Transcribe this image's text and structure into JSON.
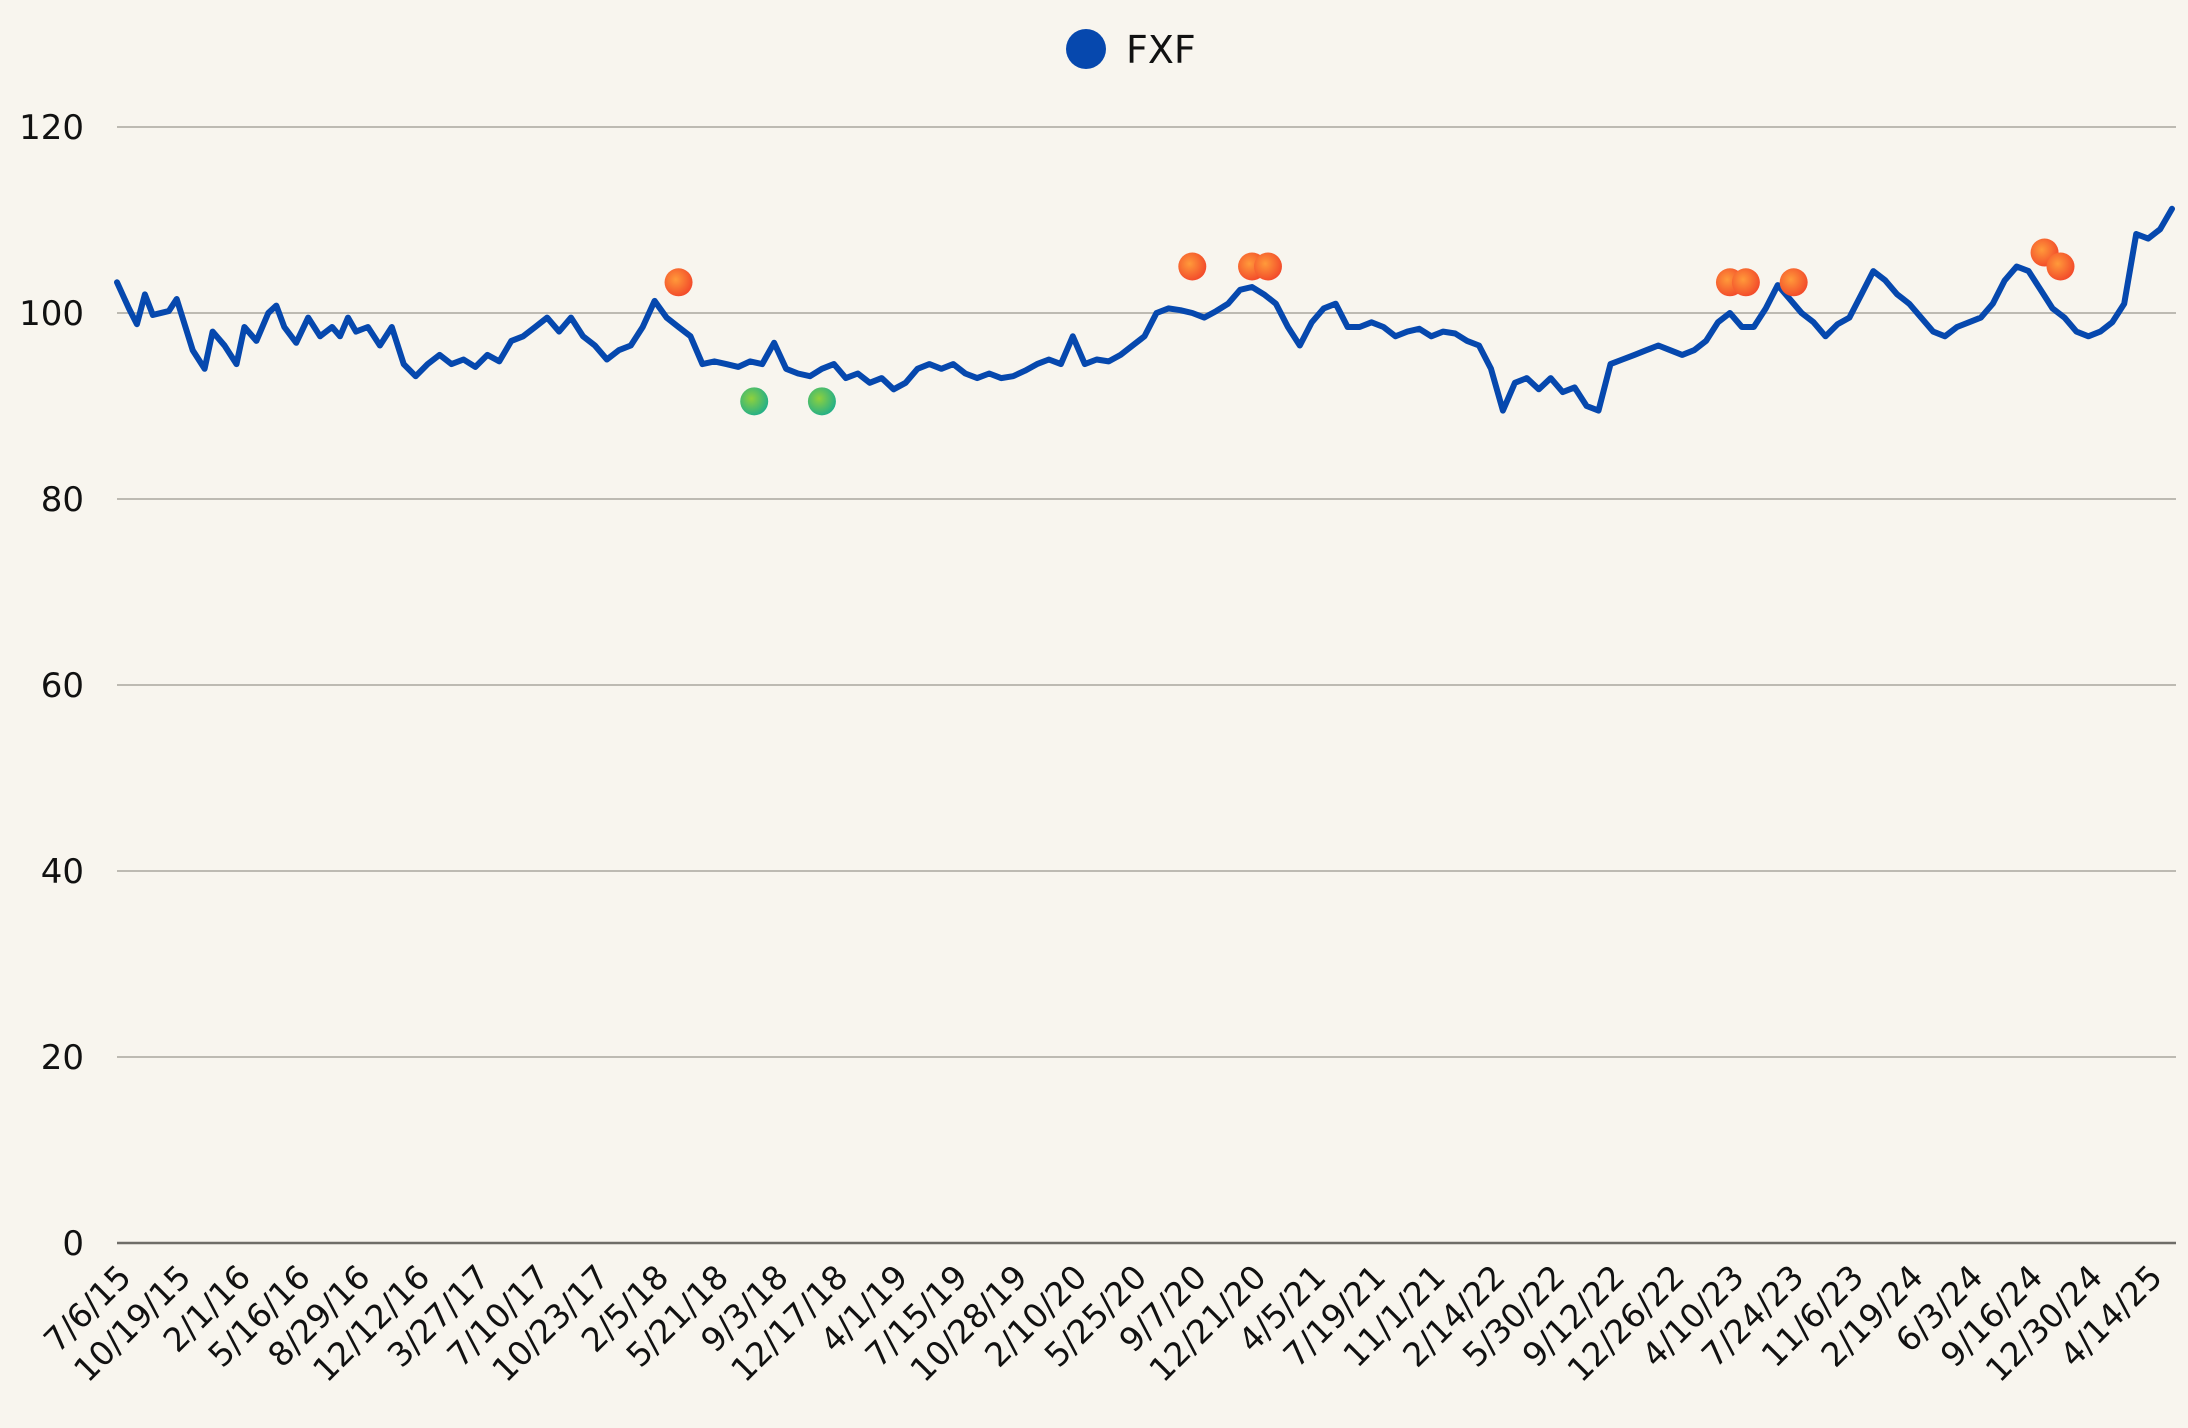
{
  "chart_data": {
    "type": "line",
    "legend": {
      "placement": "top-center"
    },
    "series": [
      {
        "name": "FXF",
        "color": "#0648ae",
        "points": [
          [
            "7/6/15",
            103.3
          ],
          [
            "7/27/15",
            100.5
          ],
          [
            "8/10/15",
            98.8
          ],
          [
            "8/24/15",
            102.0
          ],
          [
            "9/7/15",
            99.8
          ],
          [
            "10/5/15",
            100.2
          ],
          [
            "10/19/15",
            101.5
          ],
          [
            "11/16/15",
            96.0
          ],
          [
            "12/7/15",
            94.0
          ],
          [
            "12/21/15",
            98.0
          ],
          [
            "1/11/16",
            96.5
          ],
          [
            "2/1/16",
            94.5
          ],
          [
            "2/15/16",
            98.5
          ],
          [
            "3/7/16",
            97.0
          ],
          [
            "3/28/16",
            100.0
          ],
          [
            "4/11/16",
            100.8
          ],
          [
            "4/25/16",
            98.5
          ],
          [
            "5/16/16",
            96.8
          ],
          [
            "6/6/16",
            99.5
          ],
          [
            "6/27/16",
            97.5
          ],
          [
            "7/18/16",
            98.5
          ],
          [
            "8/1/16",
            97.5
          ],
          [
            "8/15/16",
            99.5
          ],
          [
            "8/29/16",
            98.0
          ],
          [
            "9/19/16",
            98.5
          ],
          [
            "10/10/16",
            96.5
          ],
          [
            "10/31/16",
            98.5
          ],
          [
            "11/21/16",
            94.5
          ],
          [
            "12/12/16",
            93.2
          ],
          [
            "1/2/17",
            94.5
          ],
          [
            "1/23/17",
            95.5
          ],
          [
            "2/13/17",
            94.5
          ],
          [
            "3/6/17",
            95.0
          ],
          [
            "3/27/17",
            94.2
          ],
          [
            "4/17/17",
            95.5
          ],
          [
            "5/8/17",
            94.8
          ],
          [
            "5/29/17",
            97.0
          ],
          [
            "6/19/17",
            97.5
          ],
          [
            "7/10/17",
            98.5
          ],
          [
            "7/31/17",
            99.5
          ],
          [
            "8/21/17",
            98.0
          ],
          [
            "9/11/17",
            99.5
          ],
          [
            "10/2/17",
            97.5
          ],
          [
            "10/23/17",
            96.5
          ],
          [
            "11/13/17",
            95.0
          ],
          [
            "12/4/17",
            96.0
          ],
          [
            "12/25/17",
            96.5
          ],
          [
            "1/15/18",
            98.5
          ],
          [
            "2/5/18",
            101.3
          ],
          [
            "2/26/18",
            99.5
          ],
          [
            "3/19/18",
            98.5
          ],
          [
            "4/9/18",
            97.5
          ],
          [
            "4/30/18",
            94.5
          ],
          [
            "5/21/18",
            94.8
          ],
          [
            "6/11/18",
            94.5
          ],
          [
            "7/2/18",
            94.2
          ],
          [
            "7/23/18",
            94.8
          ],
          [
            "8/13/18",
            94.5
          ],
          [
            "9/3/18",
            96.8
          ],
          [
            "9/24/18",
            94.0
          ],
          [
            "10/15/18",
            93.5
          ],
          [
            "11/5/18",
            93.2
          ],
          [
            "11/26/18",
            94.0
          ],
          [
            "12/17/18",
            94.5
          ],
          [
            "1/7/19",
            93.0
          ],
          [
            "1/28/19",
            93.5
          ],
          [
            "2/18/19",
            92.5
          ],
          [
            "3/11/19",
            93.0
          ],
          [
            "4/1/19",
            91.8
          ],
          [
            "4/22/19",
            92.5
          ],
          [
            "5/13/19",
            94.0
          ],
          [
            "6/3/19",
            94.5
          ],
          [
            "6/24/19",
            94.0
          ],
          [
            "7/15/19",
            94.5
          ],
          [
            "8/5/19",
            93.5
          ],
          [
            "8/26/19",
            93.0
          ],
          [
            "9/16/19",
            93.5
          ],
          [
            "10/7/19",
            93.0
          ],
          [
            "10/28/19",
            93.2
          ],
          [
            "11/18/19",
            93.8
          ],
          [
            "12/9/19",
            94.5
          ],
          [
            "12/30/19",
            95.0
          ],
          [
            "1/20/20",
            94.5
          ],
          [
            "2/10/20",
            97.5
          ],
          [
            "3/2/20",
            94.5
          ],
          [
            "3/23/20",
            95.0
          ],
          [
            "4/13/20",
            94.8
          ],
          [
            "5/4/20",
            95.5
          ],
          [
            "5/25/20",
            96.5
          ],
          [
            "6/15/20",
            97.5
          ],
          [
            "7/6/20",
            100.0
          ],
          [
            "7/27/20",
            100.5
          ],
          [
            "8/17/20",
            100.3
          ],
          [
            "9/7/20",
            100.0
          ],
          [
            "9/28/20",
            99.5
          ],
          [
            "10/19/20",
            100.2
          ],
          [
            "11/9/20",
            101.0
          ],
          [
            "11/30/20",
            102.5
          ],
          [
            "12/21/20",
            102.8
          ],
          [
            "1/11/21",
            102.0
          ],
          [
            "2/1/21",
            101.0
          ],
          [
            "2/22/21",
            98.5
          ],
          [
            "3/15/21",
            96.5
          ],
          [
            "4/5/21",
            99.0
          ],
          [
            "4/26/21",
            100.5
          ],
          [
            "5/17/21",
            101.0
          ],
          [
            "6/7/21",
            98.5
          ],
          [
            "6/28/21",
            98.5
          ],
          [
            "7/19/21",
            99.0
          ],
          [
            "8/9/21",
            98.5
          ],
          [
            "8/30/21",
            97.5
          ],
          [
            "9/20/21",
            98.0
          ],
          [
            "10/11/21",
            98.3
          ],
          [
            "11/1/21",
            97.5
          ],
          [
            "11/22/21",
            98.0
          ],
          [
            "12/13/21",
            97.8
          ],
          [
            "1/3/22",
            97.0
          ],
          [
            "1/24/22",
            96.5
          ],
          [
            "2/14/22",
            94.0
          ],
          [
            "3/7/22",
            89.5
          ],
          [
            "3/28/22",
            92.5
          ],
          [
            "4/18/22",
            93.0
          ],
          [
            "5/9/22",
            91.8
          ],
          [
            "5/30/22",
            93.0
          ],
          [
            "6/20/22",
            91.5
          ],
          [
            "7/11/22",
            92.0
          ],
          [
            "8/1/22",
            90.0
          ],
          [
            "8/22/22",
            89.5
          ],
          [
            "9/12/22",
            94.5
          ],
          [
            "10/3/22",
            95.0
          ],
          [
            "10/24/22",
            95.5
          ],
          [
            "11/14/22",
            96.0
          ],
          [
            "12/5/22",
            96.5
          ],
          [
            "12/26/22",
            96.0
          ],
          [
            "1/16/23",
            95.5
          ],
          [
            "2/6/23",
            96.0
          ],
          [
            "2/27/23",
            97.0
          ],
          [
            "3/20/23",
            99.0
          ],
          [
            "4/10/23",
            100.0
          ],
          [
            "5/1/23",
            98.5
          ],
          [
            "5/22/23",
            98.5
          ],
          [
            "6/12/23",
            100.5
          ],
          [
            "7/3/23",
            103.0
          ],
          [
            "7/24/23",
            101.5
          ],
          [
            "8/14/23",
            100.0
          ],
          [
            "9/4/23",
            99.0
          ],
          [
            "9/25/23",
            97.5
          ],
          [
            "10/16/23",
            98.8
          ],
          [
            "11/6/23",
            99.5
          ],
          [
            "11/27/23",
            102.0
          ],
          [
            "12/18/23",
            104.5
          ],
          [
            "1/8/24",
            103.5
          ],
          [
            "1/29/24",
            102.0
          ],
          [
            "2/19/24",
            101.0
          ],
          [
            "3/11/24",
            99.5
          ],
          [
            "4/1/24",
            98.0
          ],
          [
            "4/22/24",
            97.5
          ],
          [
            "5/13/24",
            98.5
          ],
          [
            "6/3/24",
            99.0
          ],
          [
            "6/24/24",
            99.5
          ],
          [
            "7/15/24",
            101.0
          ],
          [
            "8/5/24",
            103.5
          ],
          [
            "8/26/24",
            105.0
          ],
          [
            "9/16/24",
            104.5
          ],
          [
            "10/7/24",
            102.5
          ],
          [
            "10/28/24",
            100.5
          ],
          [
            "11/18/24",
            99.5
          ],
          [
            "12/9/24",
            98.0
          ],
          [
            "12/30/24",
            97.5
          ],
          [
            "1/20/25",
            98.0
          ],
          [
            "2/10/25",
            99.0
          ],
          [
            "3/3/25",
            101.0
          ],
          [
            "3/24/25",
            108.5
          ],
          [
            "4/14/25",
            108.0
          ],
          [
            "5/5/25",
            109.0
          ],
          [
            "5/26/25",
            111.2
          ]
        ]
      }
    ],
    "markers": [
      {
        "x": "3/19/18",
        "y": 103.3,
        "kind": "high"
      },
      {
        "x": "7/30/18",
        "y": 90.5,
        "kind": "low"
      },
      {
        "x": "11/26/18",
        "y": 90.5,
        "kind": "low"
      },
      {
        "x": "9/7/20",
        "y": 105.0,
        "kind": "high"
      },
      {
        "x": "12/21/20",
        "y": 105.0,
        "kind": "high"
      },
      {
        "x": "1/18/21",
        "y": 105.0,
        "kind": "high"
      },
      {
        "x": "4/10/23",
        "y": 103.3,
        "kind": "high"
      },
      {
        "x": "5/8/23",
        "y": 103.3,
        "kind": "high"
      },
      {
        "x": "7/31/23",
        "y": 103.3,
        "kind": "high"
      },
      {
        "x": "10/14/24",
        "y": 106.5,
        "kind": "high"
      },
      {
        "x": "11/11/24",
        "y": 105.0,
        "kind": "high"
      }
    ],
    "marker_colors": {
      "high": "#f2472a",
      "low": "#2cb56a"
    },
    "y_axis": {
      "min": 0,
      "max": 120,
      "ticks": [
        0,
        20,
        40,
        60,
        80,
        100,
        120
      ]
    },
    "x_axis": {
      "range": [
        "7/6/15",
        "6/2/25"
      ],
      "ticks": [
        "7/6/15",
        "10/19/15",
        "2/1/16",
        "5/16/16",
        "8/29/16",
        "12/12/16",
        "3/27/17",
        "7/10/17",
        "10/23/17",
        "2/5/18",
        "5/21/18",
        "9/3/18",
        "12/17/18",
        "4/1/19",
        "7/15/19",
        "10/28/19",
        "2/10/20",
        "5/25/20",
        "9/7/20",
        "12/21/20",
        "4/5/21",
        "7/19/21",
        "11/1/21",
        "2/14/22",
        "5/30/22",
        "9/12/22",
        "12/26/22",
        "4/10/23",
        "7/24/23",
        "11/6/23",
        "2/19/24",
        "6/3/24",
        "9/16/24",
        "12/30/24",
        "4/14/25"
      ],
      "label_rotation_deg": -45
    },
    "grid": true
  }
}
